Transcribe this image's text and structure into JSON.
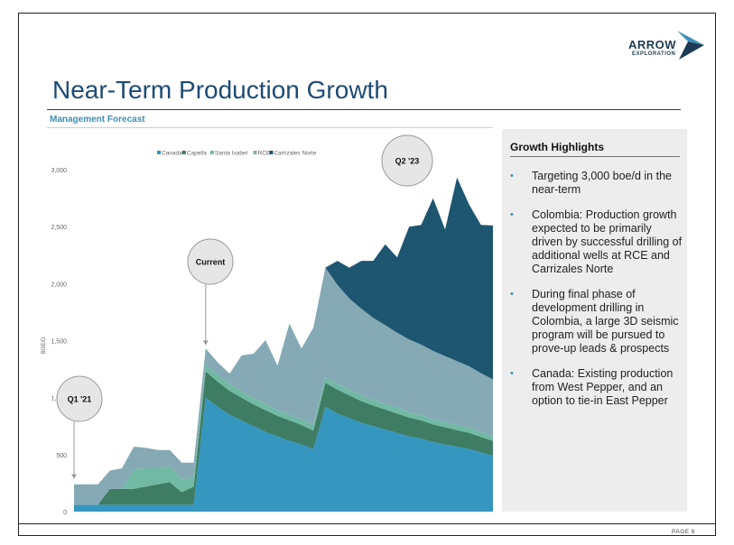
{
  "logo": {
    "word": "ARROW",
    "sub": "EXPLORATION",
    "colors": {
      "dark": "#1d3c53",
      "accent": "#3d8fb5"
    }
  },
  "title": "Near-Term Production Growth",
  "subtitle": "Management Forecast",
  "page_number": "PAGE 6",
  "panel": {
    "title": "Growth Highlights",
    "bullets": [
      "Targeting 3,000 boe/d in the near-term",
      "Colombia: Production growth expected to be primarily driven by successful drilling of additional wells at RCE and Carrizales Norte",
      "During final phase of development drilling in Colombia, a large 3D seismic program will be pursued to prove-up leads & prospects",
      "Canada: Existing production from West Pepper, and an option to tie-in East Pepper"
    ]
  },
  "chart_data": {
    "type": "area",
    "stacked": true,
    "ylabel": "BOE/D",
    "ylim": [
      0,
      3000
    ],
    "yticks": [
      "0",
      "500",
      "1,000",
      "1,500",
      "2,000",
      "2,500",
      "3,000"
    ],
    "legend_position": "top",
    "x": [
      0,
      1,
      2,
      3,
      4,
      5,
      6,
      7,
      8,
      9,
      10,
      11,
      12,
      13,
      14,
      15,
      16,
      17,
      18,
      19,
      20,
      21,
      22,
      23,
      24,
      25,
      26,
      27,
      28,
      29,
      30,
      31,
      32,
      33,
      34,
      35
    ],
    "series": [
      {
        "name": "Canada",
        "color": "#3596c0",
        "values": [
          60,
          60,
          60,
          60,
          60,
          60,
          60,
          60,
          60,
          60,
          60,
          1000,
          920,
          850,
          800,
          750,
          700,
          660,
          620,
          590,
          550,
          920,
          860,
          820,
          780,
          750,
          720,
          690,
          660,
          640,
          610,
          590,
          570,
          550,
          520,
          490
        ]
      },
      {
        "name": "Capella",
        "color": "#3e7c63",
        "values": [
          0,
          0,
          0,
          140,
          140,
          140,
          160,
          180,
          200,
          110,
          160,
          230,
          220,
          210,
          200,
          190,
          190,
          180,
          180,
          170,
          160,
          210,
          210,
          200,
          190,
          180,
          175,
          170,
          165,
          160,
          155,
          150,
          145,
          140,
          135,
          130
        ]
      },
      {
        "name": "Santa Isabel",
        "color": "#71b9a3",
        "values": [
          0,
          0,
          0,
          0,
          0,
          170,
          160,
          140,
          140,
          110,
          80,
          60,
          60,
          60,
          60,
          55,
          55,
          50,
          50,
          50,
          45,
          50,
          50,
          50,
          50,
          50,
          50,
          50,
          45,
          45,
          45,
          45,
          45,
          45,
          40,
          40
        ]
      },
      {
        "name": "RCE",
        "color": "#85aab5",
        "values": [
          180,
          180,
          180,
          160,
          180,
          200,
          180,
          160,
          140,
          150,
          130,
          140,
          110,
          90,
          310,
          390,
          560,
          390,
          800,
          620,
          860,
          960,
          870,
          800,
          760,
          720,
          690,
          660,
          640,
          620,
          600,
          580,
          560,
          540,
          520,
          500
        ]
      },
      {
        "name": "Carrizales Norte",
        "color": "#1e5670",
        "values": [
          0,
          0,
          0,
          0,
          0,
          0,
          0,
          0,
          0,
          0,
          0,
          0,
          0,
          0,
          0,
          0,
          0,
          0,
          0,
          0,
          0,
          0,
          210,
          270,
          420,
          500,
          710,
          660,
          990,
          1050,
          1340,
          1110,
          1610,
          1420,
          1300,
          1350
        ]
      }
    ],
    "annotations": [
      {
        "label": "Q1 '21",
        "x": 0
      },
      {
        "label": "Current",
        "x": 11
      },
      {
        "label": "Q2 '23",
        "x": 28
      }
    ]
  }
}
